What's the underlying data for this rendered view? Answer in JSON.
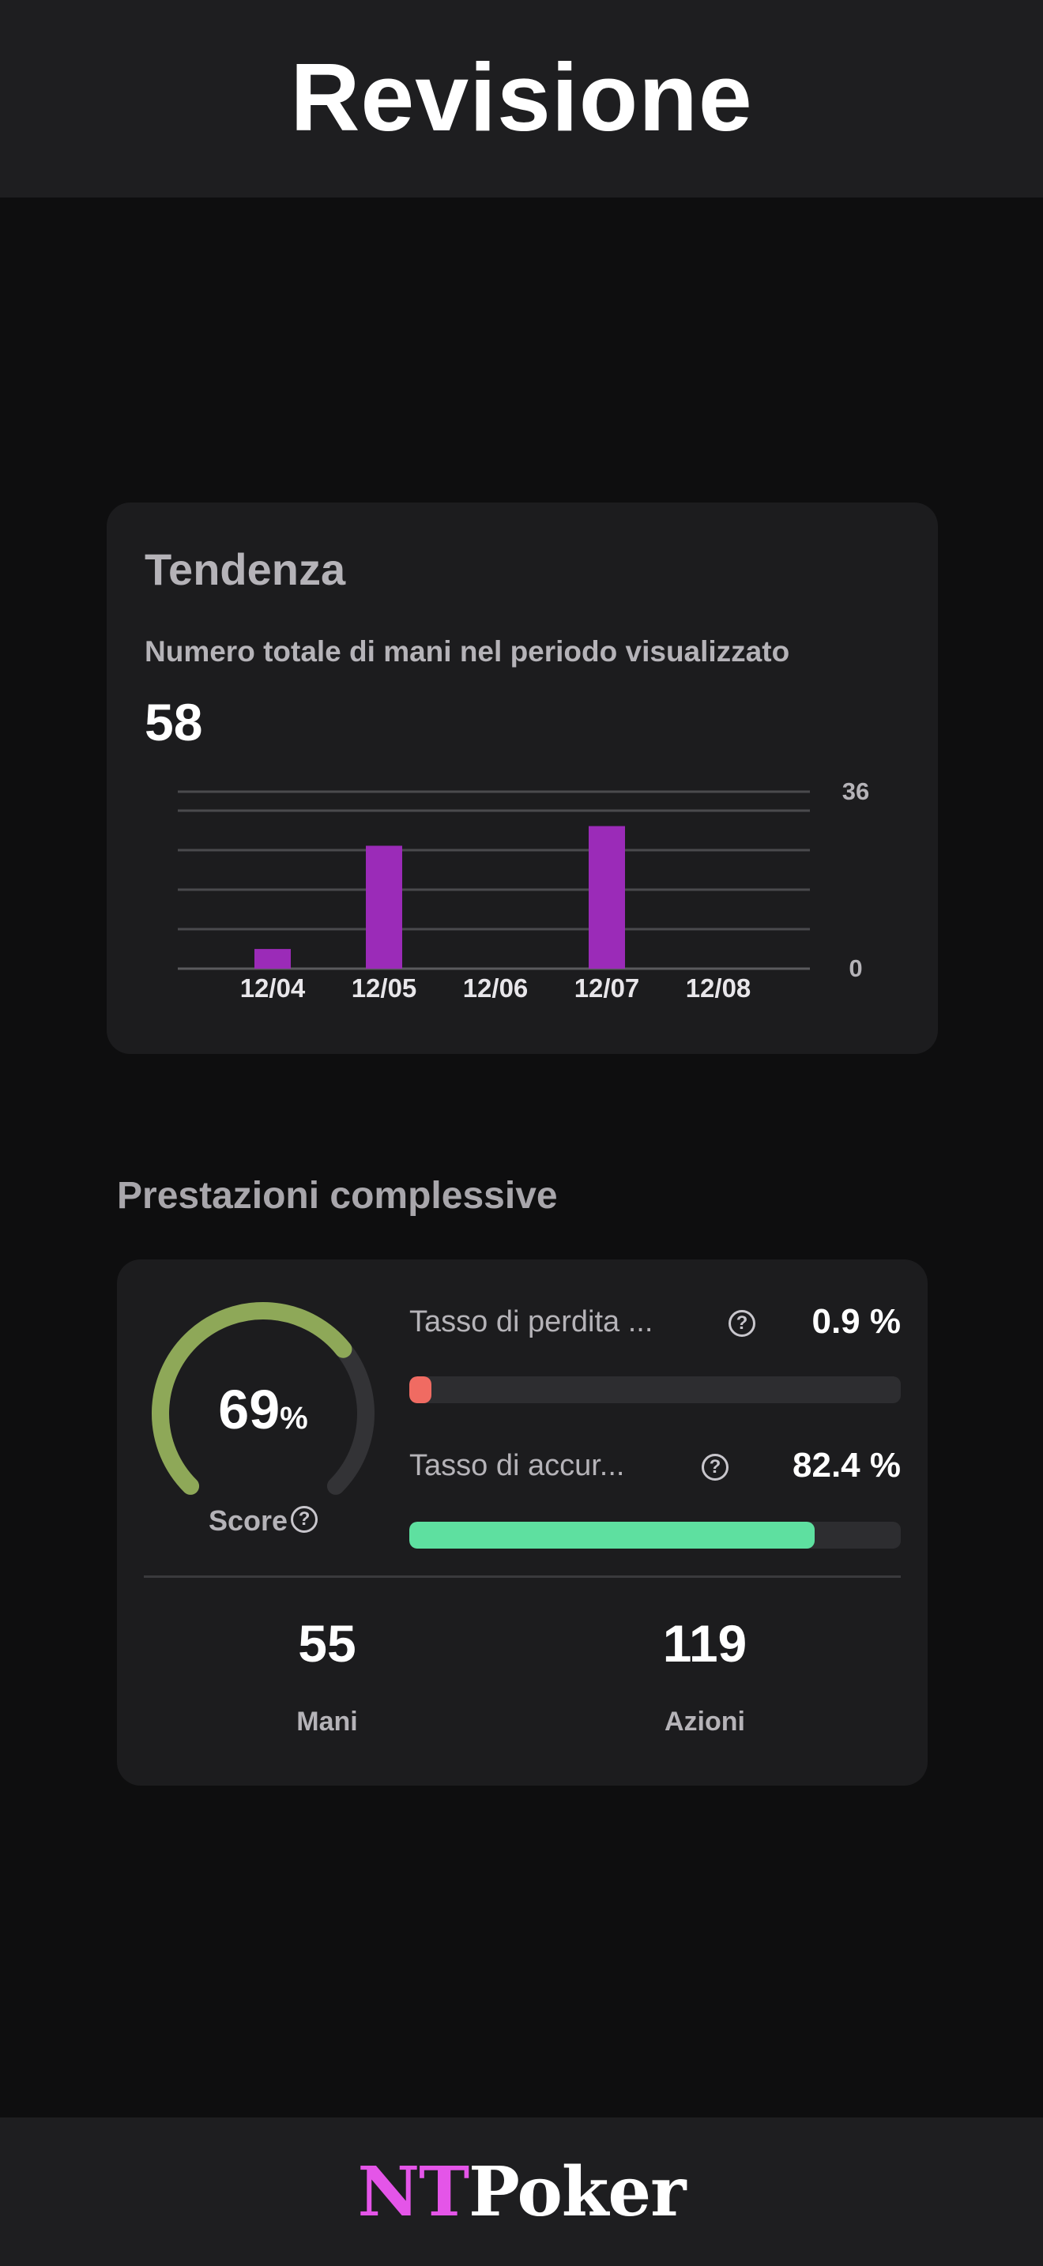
{
  "header": {
    "title": "Revisione"
  },
  "trend": {
    "title": "Tendenza",
    "subtitle": "Numero totale di mani nel periodo visualizzato",
    "total": "58"
  },
  "chart_data": {
    "type": "bar",
    "categories": [
      "12/04",
      "12/05",
      "12/06",
      "12/07",
      "12/08"
    ],
    "values": [
      4,
      25,
      0,
      29,
      0
    ],
    "ylim": [
      0,
      36
    ],
    "y_tick_labels": [
      "36",
      "0"
    ],
    "grid": true,
    "bar_color": "#9b2bb8"
  },
  "performance": {
    "title": "Prestazioni complessive",
    "score": {
      "value": "69",
      "unit": "%",
      "label": "Score",
      "fraction": 0.69,
      "color": "#8ea858"
    },
    "metrics": [
      {
        "label": "Tasso di perdita ...",
        "value": "0.9 %",
        "fraction": 0.009,
        "color": "#f06b62"
      },
      {
        "label": "Tasso di accur...",
        "value": "82.4 %",
        "fraction": 0.824,
        "color": "#5ee0a0"
      }
    ],
    "stats": [
      {
        "value": "55",
        "label": "Mani"
      },
      {
        "value": "119",
        "label": "Azioni"
      }
    ]
  },
  "footer": {
    "logo_part1": "NT",
    "logo_part2": "Poker"
  },
  "icons": {
    "help": "question-circle-icon"
  }
}
